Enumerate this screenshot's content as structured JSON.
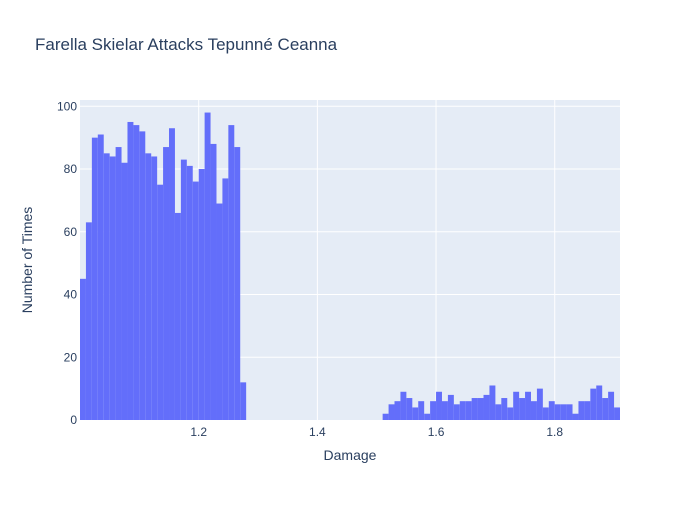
{
  "chart_data": {
    "type": "bar",
    "title": "Farella Skielar Attacks Tepunné Ceanna",
    "xlabel": "Damage",
    "ylabel": "Number of Times",
    "xlim": [
      1.0,
      1.91
    ],
    "ylim": [
      0,
      102
    ],
    "bin_width": 0.01,
    "grid": true,
    "x_ticks": [
      "1.2",
      "1.4",
      "1.6",
      "1.8"
    ],
    "y_ticks": [
      "0",
      "20",
      "40",
      "60",
      "80",
      "100"
    ],
    "x": [
      1.005,
      1.015,
      1.025,
      1.035,
      1.045,
      1.055,
      1.065,
      1.075,
      1.085,
      1.095,
      1.105,
      1.115,
      1.125,
      1.135,
      1.145,
      1.155,
      1.165,
      1.175,
      1.185,
      1.195,
      1.205,
      1.215,
      1.225,
      1.235,
      1.245,
      1.255,
      1.265,
      1.275,
      1.515,
      1.525,
      1.535,
      1.545,
      1.555,
      1.565,
      1.575,
      1.585,
      1.595,
      1.605,
      1.615,
      1.625,
      1.635,
      1.645,
      1.655,
      1.665,
      1.675,
      1.685,
      1.695,
      1.705,
      1.715,
      1.725,
      1.735,
      1.745,
      1.755,
      1.765,
      1.775,
      1.785,
      1.795,
      1.805,
      1.815,
      1.825,
      1.835,
      1.845,
      1.855,
      1.865,
      1.875,
      1.885,
      1.895,
      1.905
    ],
    "values": [
      45,
      63,
      90,
      91,
      85,
      84,
      87,
      82,
      95,
      94,
      92,
      85,
      84,
      75,
      87,
      93,
      66,
      83,
      81,
      76,
      80,
      98,
      88,
      69,
      77,
      94,
      87,
      12,
      2,
      5,
      6,
      9,
      7,
      4,
      6,
      2,
      6,
      9,
      6,
      8,
      5,
      6,
      6,
      7,
      7,
      8,
      11,
      5,
      7,
      4,
      9,
      7,
      9,
      6,
      10,
      4,
      6,
      5,
      5,
      5,
      2,
      6,
      6,
      10,
      11,
      7,
      9,
      4
    ],
    "bar_color": "#636efa",
    "plot_background": "#e5ecf6",
    "grid_color": "#ffffff"
  }
}
